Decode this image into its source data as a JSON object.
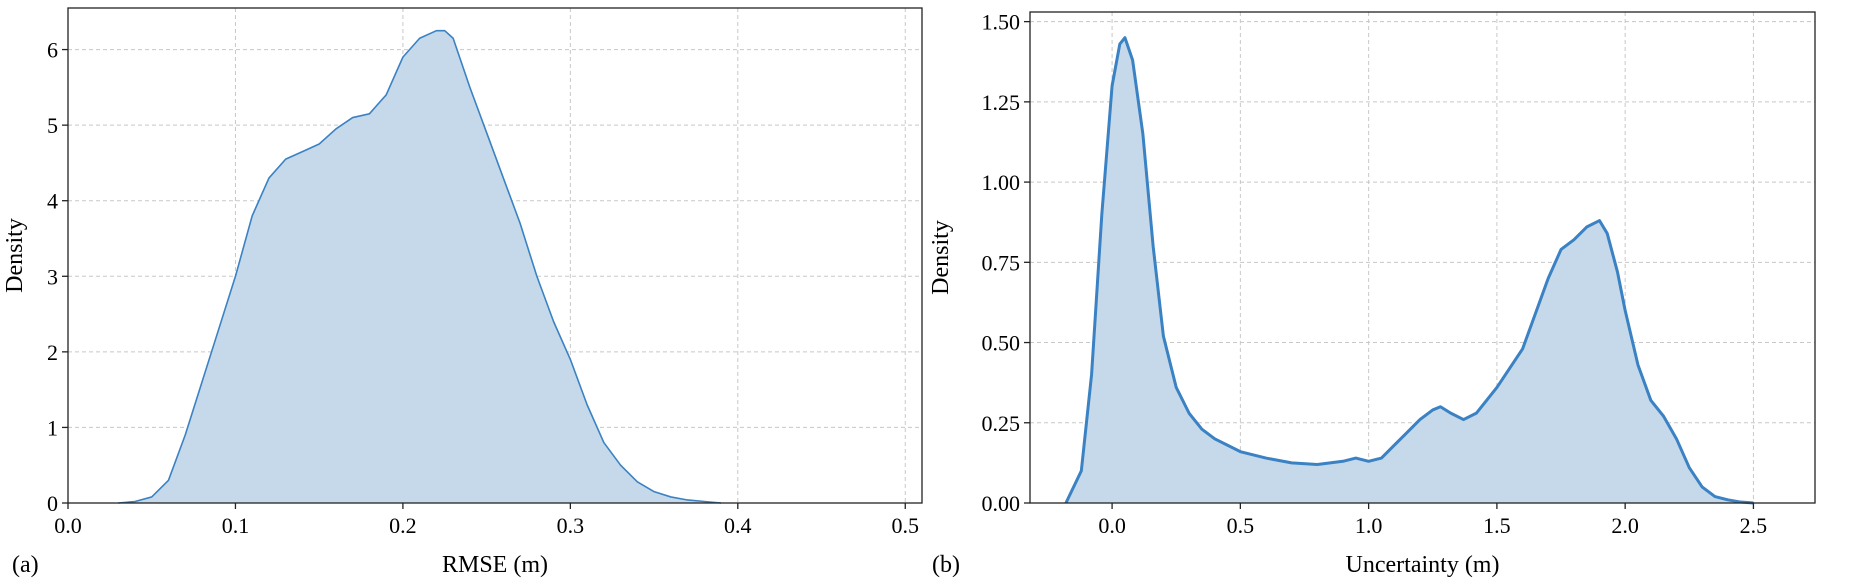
{
  "colors": {
    "line": "#3a82c3",
    "fill": "#c5d9ea",
    "grid": "#c8c8c8",
    "axis": "#222222"
  },
  "chart_data": [
    {
      "type": "area",
      "panel_label": "(a)",
      "xlabel": "RMSE (m)",
      "ylabel": "Density",
      "xlim": [
        0.0,
        0.51
      ],
      "ylim": [
        0,
        6.55
      ],
      "grid": true,
      "x_ticks": [
        0.0,
        0.1,
        0.2,
        0.3,
        0.4,
        0.5
      ],
      "x_tick_labels": [
        "0.0",
        "0.1",
        "0.2",
        "0.3",
        "0.4",
        "0.5"
      ],
      "y_ticks": [
        0,
        1,
        2,
        3,
        4,
        5,
        6
      ],
      "y_tick_labels": [
        "0",
        "1",
        "2",
        "3",
        "4",
        "5",
        "6"
      ],
      "series": [
        {
          "x": [
            0.03,
            0.04,
            0.05,
            0.06,
            0.07,
            0.08,
            0.09,
            0.1,
            0.11,
            0.12,
            0.13,
            0.14,
            0.15,
            0.16,
            0.17,
            0.18,
            0.19,
            0.2,
            0.21,
            0.22,
            0.225,
            0.23,
            0.24,
            0.25,
            0.26,
            0.27,
            0.28,
            0.29,
            0.3,
            0.31,
            0.32,
            0.33,
            0.34,
            0.35,
            0.36,
            0.37,
            0.38,
            0.39
          ],
          "y": [
            0.0,
            0.02,
            0.08,
            0.3,
            0.9,
            1.6,
            2.3,
            3.0,
            3.8,
            4.3,
            4.55,
            4.65,
            4.75,
            4.95,
            5.1,
            5.15,
            5.4,
            5.9,
            6.15,
            6.25,
            6.25,
            6.15,
            5.5,
            4.9,
            4.3,
            3.7,
            3.0,
            2.4,
            1.9,
            1.3,
            0.8,
            0.5,
            0.28,
            0.15,
            0.08,
            0.04,
            0.02,
            0.0
          ]
        }
      ]
    },
    {
      "type": "area",
      "panel_label": "(b)",
      "xlabel": "Uncertainty (m)",
      "ylabel": "Density",
      "xlim": [
        -0.32,
        2.74
      ],
      "ylim": [
        0,
        1.53
      ],
      "grid": true,
      "x_ticks": [
        0.0,
        0.5,
        1.0,
        1.5,
        2.0,
        2.5
      ],
      "x_tick_labels": [
        "0.0",
        "0.5",
        "1.0",
        "1.5",
        "2.0",
        "2.5"
      ],
      "y_ticks": [
        0.0,
        0.25,
        0.5,
        0.75,
        1.0,
        1.25,
        1.5
      ],
      "y_tick_labels": [
        "0.00",
        "0.25",
        "0.50",
        "0.75",
        "1.00",
        "1.25",
        "1.50"
      ],
      "series": [
        {
          "x": [
            -0.18,
            -0.12,
            -0.08,
            -0.04,
            0.0,
            0.03,
            0.05,
            0.08,
            0.12,
            0.16,
            0.2,
            0.25,
            0.3,
            0.35,
            0.4,
            0.5,
            0.6,
            0.7,
            0.8,
            0.9,
            0.95,
            1.0,
            1.05,
            1.1,
            1.15,
            1.2,
            1.25,
            1.28,
            1.32,
            1.37,
            1.42,
            1.5,
            1.6,
            1.7,
            1.75,
            1.8,
            1.85,
            1.9,
            1.93,
            1.97,
            2.0,
            2.05,
            2.1,
            2.15,
            2.2,
            2.25,
            2.3,
            2.35,
            2.4,
            2.45,
            2.5
          ],
          "y": [
            0.0,
            0.1,
            0.4,
            0.9,
            1.3,
            1.43,
            1.45,
            1.38,
            1.15,
            0.8,
            0.52,
            0.36,
            0.28,
            0.23,
            0.2,
            0.16,
            0.14,
            0.125,
            0.12,
            0.13,
            0.14,
            0.13,
            0.14,
            0.18,
            0.22,
            0.26,
            0.29,
            0.3,
            0.28,
            0.26,
            0.28,
            0.36,
            0.48,
            0.7,
            0.79,
            0.82,
            0.86,
            0.88,
            0.84,
            0.72,
            0.6,
            0.43,
            0.32,
            0.27,
            0.2,
            0.11,
            0.05,
            0.02,
            0.01,
            0.003,
            0.0
          ]
        }
      ]
    }
  ]
}
